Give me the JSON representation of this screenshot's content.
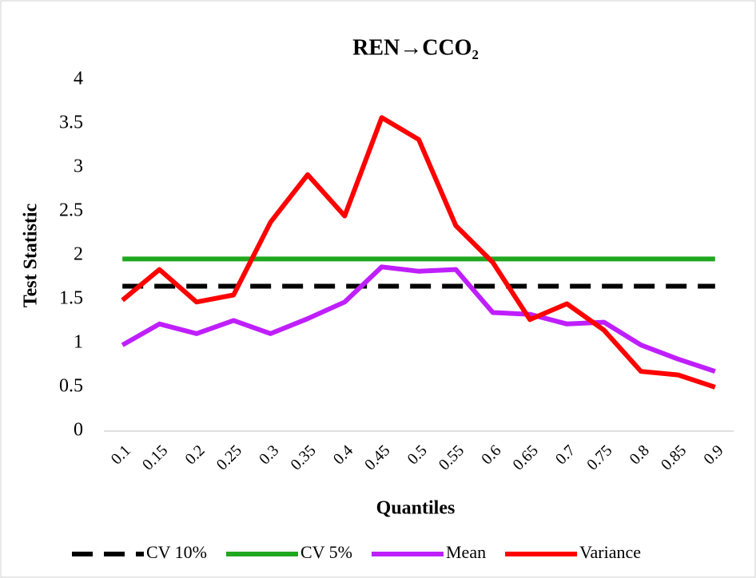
{
  "chart_data": {
    "type": "line",
    "title": "REN→CCO₂",
    "x_label": "Quantiles",
    "y_label": "Test Statistic",
    "categories": [
      "0.1",
      "0.15",
      "0.2",
      "0.25",
      "0.3",
      "0.35",
      "0.4",
      "0.45",
      "0.5",
      "0.55",
      "0.6",
      "0.65",
      "0.7",
      "0.75",
      "0.8",
      "0.85",
      "0.9"
    ],
    "ylim": [
      0,
      4
    ],
    "yticks": [
      0,
      0.5,
      1,
      1.5,
      2,
      2.5,
      3,
      3.5,
      4
    ],
    "grid": false,
    "legend": "bottom",
    "series": [
      {
        "name": "CV 10%",
        "color": "#000000",
        "dash": true,
        "values": [
          1.65,
          1.65,
          1.65,
          1.65,
          1.65,
          1.65,
          1.65,
          1.65,
          1.65,
          1.65,
          1.65,
          1.65,
          1.65,
          1.65,
          1.65,
          1.65,
          1.65
        ]
      },
      {
        "name": "CV 5%",
        "color": "#1fa81f",
        "dash": false,
        "values": [
          1.96,
          1.96,
          1.96,
          1.96,
          1.96,
          1.96,
          1.96,
          1.96,
          1.96,
          1.96,
          1.96,
          1.96,
          1.96,
          1.96,
          1.96,
          1.96,
          1.96
        ]
      },
      {
        "name": "Mean",
        "color": "#bf1fff",
        "dash": false,
        "values": [
          0.98,
          1.22,
          1.11,
          1.26,
          1.11,
          1.28,
          1.47,
          1.87,
          1.82,
          1.84,
          1.35,
          1.33,
          1.22,
          1.24,
          0.98,
          0.82,
          0.68
        ]
      },
      {
        "name": "Variance",
        "color": "#ff0000",
        "dash": false,
        "values": [
          1.49,
          1.84,
          1.47,
          1.55,
          2.38,
          2.92,
          2.45,
          3.57,
          3.32,
          2.34,
          1.92,
          1.27,
          1.45,
          1.15,
          0.68,
          0.64,
          0.5
        ]
      }
    ]
  }
}
